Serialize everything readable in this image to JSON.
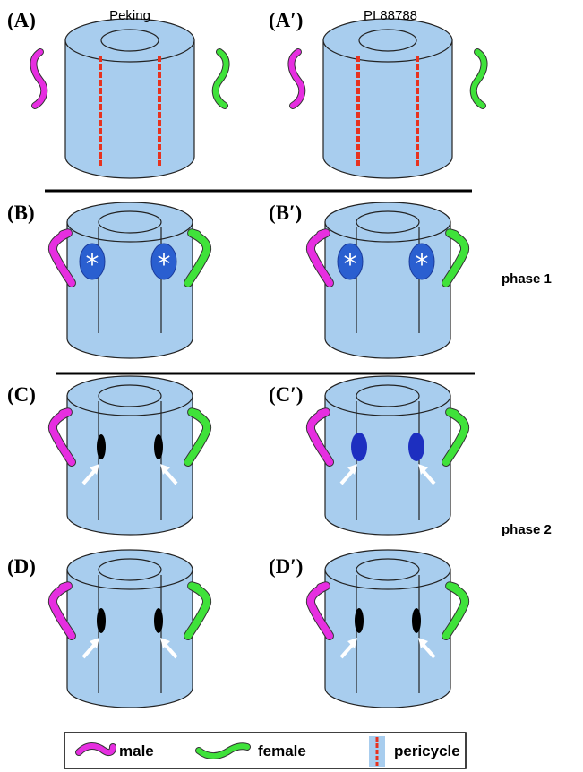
{
  "panels": [
    {
      "label": "(A)",
      "title": "Peking"
    },
    {
      "label": "(A′)",
      "title": "PI 88788"
    },
    {
      "label": "(B)"
    },
    {
      "label": "(B′)"
    },
    {
      "label": "(C)"
    },
    {
      "label": "(C′)"
    },
    {
      "label": "(D)"
    },
    {
      "label": "(D′)"
    }
  ],
  "phases": [
    "phase 1",
    "phase 2"
  ],
  "legend": [
    {
      "label": "male"
    },
    {
      "label": "female"
    },
    {
      "label": "pericycle"
    }
  ]
}
